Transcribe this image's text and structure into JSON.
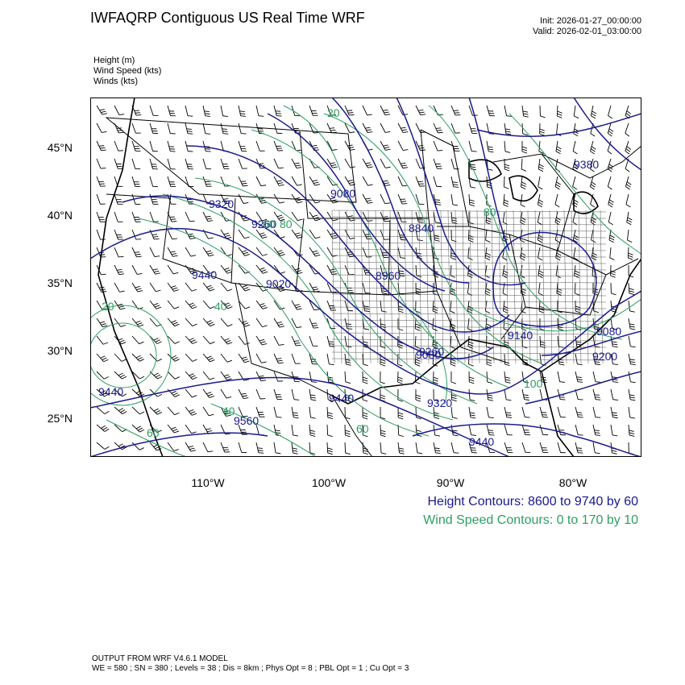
{
  "header": {
    "title": "IWFAQRP Contiguous US Real Time WRF",
    "init": "Init: 2026-01-27_00:00:00",
    "valid": "Valid: 2026-02-01_03:00:00"
  },
  "fields": [
    "Height   (m)",
    "Wind Speed   (kts)",
    "Winds   (kts)"
  ],
  "axes": {
    "lat_labels": [
      "45°N",
      "40°N",
      "35°N",
      "30°N",
      "25°N"
    ],
    "lon_labels": [
      "110°W",
      "100°W",
      "90°W",
      "80°W"
    ]
  },
  "map": {
    "height_labels": [
      "9320",
      "9260",
      "9080",
      "8840",
      "9440",
      "9020",
      "8960",
      "9140",
      "9080",
      "9380",
      "9200",
      "9440",
      "9440",
      "9320",
      "9440",
      "9560",
      "9260",
      "9080"
    ],
    "wind_labels": [
      "20",
      "40",
      "60",
      "80",
      "60",
      "40",
      "20",
      "60",
      "80",
      "100"
    ],
    "colors": {
      "height": "#1a1a8c",
      "wind": "#2e9e62",
      "borders": "#000000",
      "counties": "#555555",
      "barbs": "#000000"
    }
  },
  "contour_info": {
    "height": "Height Contours: 8600 to 9740 by 60",
    "wind": "Wind Speed Contours: 0 to 170 by 10"
  },
  "footer": {
    "line1": "OUTPUT FROM WRF V4.6.1 MODEL",
    "line2": "WE = 580 ; SN = 380 ; Levels = 38 ; Dis = 8km ; Phys Opt = 8 ; PBL Opt = 1 ; Cu Opt = 3"
  }
}
